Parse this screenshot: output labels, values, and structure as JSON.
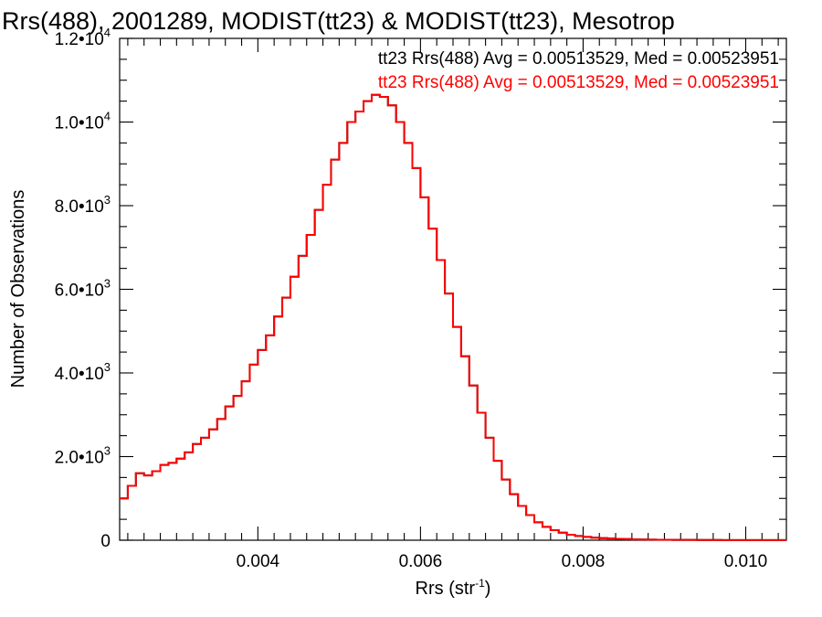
{
  "chart_data": {
    "type": "line",
    "title": "Rrs(488), 2001289, MODIST(tt23) & MODIST(tt23), Mesotrop",
    "xlabel": "Rrs (str",
    "xlabel_sup": "-1",
    "xlabel_close": ")",
    "ylabel": "Number of Observations",
    "xlim": [
      0.0023,
      0.0105
    ],
    "ylim": [
      0,
      12000
    ],
    "x_ticks": [
      {
        "value": 0.004,
        "label": "0.004"
      },
      {
        "value": 0.006,
        "label": "0.006"
      },
      {
        "value": 0.008,
        "label": "0.008"
      },
      {
        "value": 0.01,
        "label": "0.010"
      }
    ],
    "y_ticks": [
      {
        "value": 0,
        "mant": "0",
        "exp": ""
      },
      {
        "value": 2000,
        "mant": "2.0•10",
        "exp": "3"
      },
      {
        "value": 4000,
        "mant": "4.0•10",
        "exp": "3"
      },
      {
        "value": 6000,
        "mant": "6.0•10",
        "exp": "3"
      },
      {
        "value": 8000,
        "mant": "8.0•10",
        "exp": "3"
      },
      {
        "value": 10000,
        "mant": "1.0•10",
        "exp": "4"
      },
      {
        "value": 12000,
        "mant": "1.2•10",
        "exp": "4"
      }
    ],
    "series": [
      {
        "label": "tt23 Rrs(488) Avg = 0.00513529, Med = 0.00523951",
        "color": "#000000",
        "x": [
          0.0023,
          0.0024,
          0.0025,
          0.0026,
          0.0027,
          0.0028,
          0.0029,
          0.003,
          0.0031,
          0.0032,
          0.0033,
          0.0034,
          0.0035,
          0.0036,
          0.0037,
          0.0038,
          0.0039,
          0.004,
          0.0041,
          0.0042,
          0.0043,
          0.0044,
          0.0045,
          0.0046,
          0.0047,
          0.0048,
          0.0049,
          0.005,
          0.0051,
          0.0052,
          0.0053,
          0.0054,
          0.0055,
          0.0056,
          0.0057,
          0.0058,
          0.0059,
          0.006,
          0.0061,
          0.0062,
          0.0063,
          0.0064,
          0.0065,
          0.0066,
          0.0067,
          0.0068,
          0.0069,
          0.007,
          0.0071,
          0.0072,
          0.0073,
          0.0074,
          0.0075,
          0.0076,
          0.0077,
          0.0078,
          0.0079,
          0.008,
          0.0081,
          0.0082,
          0.0083,
          0.0084,
          0.0085,
          0.0086,
          0.0087,
          0.0088,
          0.0089,
          0.009,
          0.0091,
          0.0092,
          0.0093,
          0.0094,
          0.0095,
          0.0096,
          0.0097,
          0.0098,
          0.0099,
          0.01,
          0.0101,
          0.0102,
          0.0103,
          0.0104,
          0.0105
        ],
        "y": [
          1000,
          1300,
          1600,
          1550,
          1650,
          1800,
          1850,
          1950,
          2100,
          2300,
          2450,
          2650,
          2900,
          3200,
          3450,
          3800,
          4200,
          4550,
          4900,
          5350,
          5800,
          6300,
          6800,
          7300,
          7900,
          8500,
          9100,
          9500,
          10000,
          10250,
          10500,
          10650,
          10600,
          10400,
          10000,
          9500,
          8900,
          8200,
          7450,
          6700,
          5900,
          5100,
          4400,
          3700,
          3050,
          2450,
          1900,
          1450,
          1100,
          820,
          600,
          430,
          320,
          240,
          180,
          130,
          100,
          80,
          60,
          50,
          40,
          32,
          26,
          20,
          16,
          14,
          12,
          10,
          9,
          8,
          7,
          6,
          5,
          5,
          4,
          4,
          3,
          3,
          3,
          2,
          2,
          2,
          2
        ]
      },
      {
        "label": "tt23 Rrs(488) Avg = 0.00513529, Med = 0.00523951",
        "color": "#ff0000",
        "x": [
          0.0023,
          0.0024,
          0.0025,
          0.0026,
          0.0027,
          0.0028,
          0.0029,
          0.003,
          0.0031,
          0.0032,
          0.0033,
          0.0034,
          0.0035,
          0.0036,
          0.0037,
          0.0038,
          0.0039,
          0.004,
          0.0041,
          0.0042,
          0.0043,
          0.0044,
          0.0045,
          0.0046,
          0.0047,
          0.0048,
          0.0049,
          0.005,
          0.0051,
          0.0052,
          0.0053,
          0.0054,
          0.0055,
          0.0056,
          0.0057,
          0.0058,
          0.0059,
          0.006,
          0.0061,
          0.0062,
          0.0063,
          0.0064,
          0.0065,
          0.0066,
          0.0067,
          0.0068,
          0.0069,
          0.007,
          0.0071,
          0.0072,
          0.0073,
          0.0074,
          0.0075,
          0.0076,
          0.0077,
          0.0078,
          0.0079,
          0.008,
          0.0081,
          0.0082,
          0.0083,
          0.0084,
          0.0085,
          0.0086,
          0.0087,
          0.0088,
          0.0089,
          0.009,
          0.0091,
          0.0092,
          0.0093,
          0.0094,
          0.0095,
          0.0096,
          0.0097,
          0.0098,
          0.0099,
          0.01,
          0.0101,
          0.0102,
          0.0103,
          0.0104,
          0.0105
        ],
        "y": [
          1000,
          1300,
          1600,
          1550,
          1650,
          1800,
          1850,
          1950,
          2100,
          2300,
          2450,
          2650,
          2900,
          3200,
          3450,
          3800,
          4200,
          4550,
          4900,
          5350,
          5800,
          6300,
          6800,
          7300,
          7900,
          8500,
          9100,
          9500,
          10000,
          10250,
          10500,
          10650,
          10600,
          10400,
          10000,
          9500,
          8900,
          8200,
          7450,
          6700,
          5900,
          5100,
          4400,
          3700,
          3050,
          2450,
          1900,
          1450,
          1100,
          820,
          600,
          430,
          320,
          240,
          180,
          130,
          100,
          80,
          60,
          50,
          40,
          32,
          26,
          20,
          16,
          14,
          12,
          10,
          9,
          8,
          7,
          6,
          5,
          5,
          4,
          4,
          3,
          3,
          3,
          2,
          2,
          2,
          2
        ]
      }
    ],
    "grid": false,
    "legend_position": "top-right"
  }
}
